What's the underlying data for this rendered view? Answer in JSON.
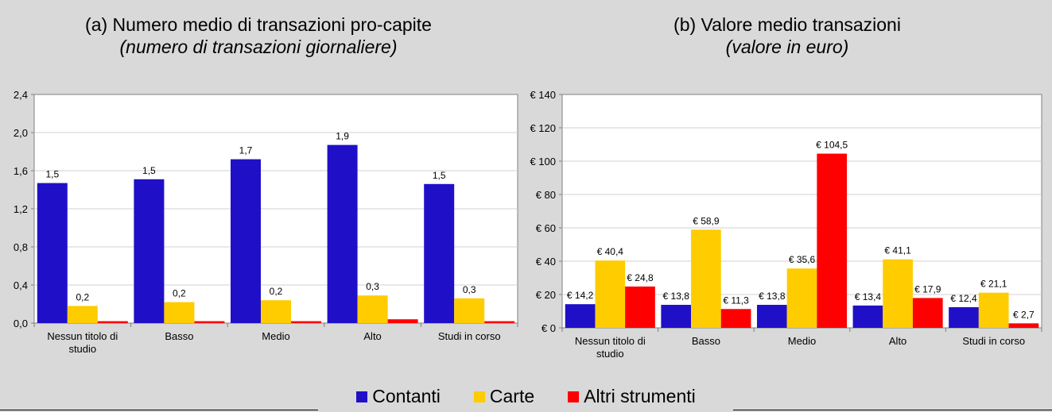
{
  "colors": {
    "Contanti": "#1f10c8",
    "Carte": "#ffcc00",
    "Altri strumenti": "#ff0000"
  },
  "legend": [
    {
      "name": "Contanti",
      "color": "#1f10c8"
    },
    {
      "name": "Carte",
      "color": "#ffcc00"
    },
    {
      "name": "Altri strumenti",
      "color": "#ff0000"
    }
  ],
  "charts": {
    "a": {
      "title": "(a)  Numero medio di transazioni pro-capite",
      "subtitle": "(numero di transazioni giornaliere)"
    },
    "b": {
      "title": "(b)  Valore medio transazioni",
      "subtitle": "(valore in euro)"
    }
  },
  "chart_data": [
    {
      "type": "bar",
      "title": "(a)  Numero medio di transazioni pro-capite",
      "subtitle": "(numero di transazioni giornaliere)",
      "categories": [
        "Nessun titolo di studio",
        "Basso",
        "Medio",
        "Alto",
        "Studi in corso"
      ],
      "category_labels": [
        [
          "Nessun titolo di",
          "studio"
        ],
        [
          "Basso"
        ],
        [
          "Medio"
        ],
        [
          "Alto"
        ],
        [
          "Studi in corso"
        ]
      ],
      "ylim": [
        0,
        2.4
      ],
      "yticks": [
        "0,0",
        "0,4",
        "0,8",
        "1,2",
        "1,6",
        "2,0",
        "2,4"
      ],
      "ytick_values": [
        0,
        0.4,
        0.8,
        1.2,
        1.6,
        2.0,
        2.4
      ],
      "grid": true,
      "series": [
        {
          "name": "Contanti",
          "values": [
            1.47,
            1.51,
            1.72,
            1.87,
            1.46
          ],
          "labels": [
            "1,5",
            "1,5",
            "1,7",
            "1,9",
            "1,5"
          ]
        },
        {
          "name": "Carte",
          "values": [
            0.18,
            0.22,
            0.24,
            0.29,
            0.26
          ],
          "labels": [
            "0,2",
            "0,2",
            "0,2",
            "0,3",
            "0,3"
          ]
        },
        {
          "name": "Altri strumenti",
          "values": [
            0.02,
            0.02,
            0.02,
            0.04,
            0.02
          ],
          "labels": [
            "",
            "",
            "",
            "",
            ""
          ]
        }
      ]
    },
    {
      "type": "bar",
      "title": "(b)  Valore medio transazioni",
      "subtitle": "(valore in euro)",
      "categories": [
        "Nessun titolo di studio",
        "Basso",
        "Medio",
        "Alto",
        "Studi in corso"
      ],
      "category_labels": [
        [
          "Nessun titolo di",
          "studio"
        ],
        [
          "Basso"
        ],
        [
          "Medio"
        ],
        [
          "Alto"
        ],
        [
          "Studi in corso"
        ]
      ],
      "ylim": [
        0,
        140
      ],
      "yticks": [
        "€ 0",
        "€ 20",
        "€ 40",
        "€ 60",
        "€ 80",
        "€ 100",
        "€ 120",
        "€ 140"
      ],
      "ytick_values": [
        0,
        20,
        40,
        60,
        80,
        100,
        120,
        140
      ],
      "grid": true,
      "series": [
        {
          "name": "Contanti",
          "values": [
            14.2,
            13.8,
            13.8,
            13.4,
            12.4
          ],
          "labels": [
            "€ 14,2",
            "€ 13,8",
            "€ 13,8",
            "€ 13,4",
            "€ 12,4"
          ]
        },
        {
          "name": "Carte",
          "values": [
            40.4,
            58.9,
            35.6,
            41.1,
            21.1
          ],
          "labels": [
            "€ 40,4",
            "€ 58,9",
            "€ 35,6",
            "€ 41,1",
            "€ 21,1"
          ]
        },
        {
          "name": "Altri strumenti",
          "values": [
            24.8,
            11.3,
            104.5,
            17.9,
            2.7
          ],
          "labels": [
            "€ 24,8",
            "€ 11,3",
            "€ 104,5",
            "€ 17,9",
            "€ 2,7"
          ]
        }
      ]
    }
  ]
}
